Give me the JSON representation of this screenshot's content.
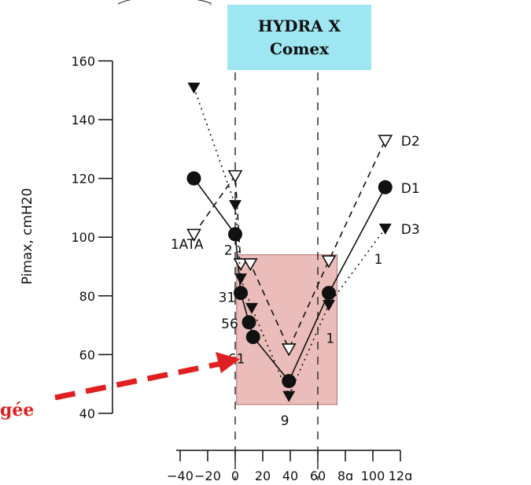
{
  "chart_data": {
    "type": "line",
    "title": "",
    "banner": [
      "HYDRA X",
      "Comex"
    ],
    "ylabel": "Pimax, cmH20",
    "xlabel": "",
    "xlim": [
      -40,
      120
    ],
    "ylim": [
      40,
      160
    ],
    "xticks": [
      -40,
      -20,
      0,
      20,
      40,
      60,
      80,
      100,
      120
    ],
    "xtick_labels": [
      "−40",
      "−20",
      "0",
      "20",
      "40",
      "60",
      "8ɑ",
      "100",
      "12ɑ"
    ],
    "yticks": [
      40,
      60,
      80,
      100,
      120,
      140,
      160
    ],
    "grid": false,
    "vlines": [
      0,
      60
    ],
    "series": [
      {
        "name": "D1",
        "marker": "filled-circle",
        "line": "solid",
        "points": [
          [
            -30,
            120
          ],
          [
            0,
            101
          ],
          [
            4,
            81
          ],
          [
            10,
            71
          ],
          [
            13,
            66
          ],
          [
            39,
            51
          ],
          [
            68,
            81
          ],
          [
            109,
            117
          ]
        ]
      },
      {
        "name": "D2",
        "marker": "open-triangle",
        "line": "dashed",
        "points": [
          [
            -30,
            101
          ],
          [
            0,
            121
          ],
          [
            4,
            91
          ],
          [
            11,
            91
          ],
          [
            39,
            62
          ],
          [
            68,
            92
          ],
          [
            109,
            133
          ]
        ]
      },
      {
        "name": "D3",
        "marker": "filled-triangle",
        "line": "dotted",
        "points": [
          [
            -30,
            151
          ],
          [
            0,
            111
          ],
          [
            4,
            86
          ],
          [
            12,
            76
          ],
          [
            39,
            46
          ],
          [
            68,
            77
          ],
          [
            109,
            103
          ]
        ]
      }
    ],
    "annotations": [
      {
        "text": "1ATA",
        "x": -35,
        "y": 96
      },
      {
        "text": "2",
        "x": -5,
        "y": 94
      },
      {
        "text": "31",
        "x": -6,
        "y": 78
      },
      {
        "text": "56",
        "x": -4,
        "y": 69
      },
      {
        "text": "61",
        "x": 1,
        "y": 57
      },
      {
        "text": "9",
        "x": 36,
        "y": 36
      },
      {
        "text": "1",
        "x": 69,
        "y": 64
      },
      {
        "text": "1",
        "x": 104,
        "y": 91
      }
    ],
    "shaded_region": {
      "x": [
        1,
        74
      ],
      "y": [
        43,
        94
      ]
    },
    "arrow_label": "gée"
  }
}
